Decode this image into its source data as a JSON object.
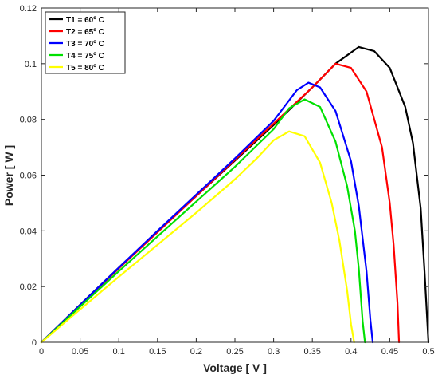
{
  "chart_data": {
    "type": "line",
    "title": "",
    "xlabel": "Voltage [ V ]",
    "ylabel": "Power [ W ]",
    "xlim": [
      0,
      0.5
    ],
    "ylim": [
      0,
      0.12
    ],
    "xticks": [
      "0",
      "0.05",
      "0.1",
      "0.15",
      "0.2",
      "0.25",
      "0.3",
      "0.35",
      "0.4",
      "0.45",
      "0.5"
    ],
    "yticks": [
      "0",
      "0.02",
      "0.04",
      "0.06",
      "0.08",
      "0.1",
      "0.12"
    ],
    "grid": false,
    "legend_position": "top-left",
    "series": [
      {
        "name": "T1 = 60º C",
        "color": "#000000",
        "x": [
          0,
          0.05,
          0.1,
          0.15,
          0.2,
          0.25,
          0.3,
          0.35,
          0.38,
          0.41,
          0.43,
          0.45,
          0.47,
          0.48,
          0.49,
          0.495,
          0.5
        ],
        "y": [
          0,
          0.0135,
          0.0268,
          0.0398,
          0.0525,
          0.0652,
          0.078,
          0.0915,
          0.1,
          0.106,
          0.1045,
          0.0985,
          0.0845,
          0.0715,
          0.048,
          0.025,
          0
        ]
      },
      {
        "name": "T2 = 65º C",
        "color": "#ff0000",
        "x": [
          0,
          0.05,
          0.1,
          0.15,
          0.2,
          0.25,
          0.3,
          0.35,
          0.38,
          0.4,
          0.42,
          0.44,
          0.45,
          0.455,
          0.46,
          0.462
        ],
        "y": [
          0,
          0.0133,
          0.0265,
          0.0395,
          0.0525,
          0.0655,
          0.0785,
          0.0915,
          0.1,
          0.0985,
          0.09,
          0.07,
          0.05,
          0.035,
          0.014,
          0
        ]
      },
      {
        "name": "T3 = 70º C",
        "color": "#0000ff",
        "x": [
          0,
          0.05,
          0.1,
          0.15,
          0.2,
          0.25,
          0.3,
          0.33,
          0.345,
          0.36,
          0.38,
          0.4,
          0.41,
          0.42,
          0.425,
          0.428
        ],
        "y": [
          0,
          0.0134,
          0.0268,
          0.04,
          0.053,
          0.066,
          0.0795,
          0.0905,
          0.0932,
          0.0915,
          0.083,
          0.065,
          0.049,
          0.0255,
          0.008,
          0
        ]
      },
      {
        "name": "T4 = 75º C",
        "color": "#00e000",
        "x": [
          0,
          0.05,
          0.1,
          0.15,
          0.2,
          0.25,
          0.3,
          0.32,
          0.34,
          0.36,
          0.38,
          0.395,
          0.405,
          0.41,
          0.415,
          0.418
        ],
        "y": [
          0,
          0.0128,
          0.0255,
          0.038,
          0.0505,
          0.063,
          0.0765,
          0.084,
          0.0872,
          0.0845,
          0.072,
          0.056,
          0.04,
          0.0265,
          0.0075,
          0
        ]
      },
      {
        "name": "T5 = 80º C",
        "color": "#ffff00",
        "x": [
          0,
          0.05,
          0.1,
          0.15,
          0.2,
          0.25,
          0.28,
          0.3,
          0.32,
          0.34,
          0.36,
          0.375,
          0.385,
          0.395,
          0.4,
          0.404
        ],
        "y": [
          0,
          0.0118,
          0.0235,
          0.035,
          0.0465,
          0.0585,
          0.0665,
          0.0725,
          0.0757,
          0.074,
          0.0645,
          0.05,
          0.0365,
          0.0185,
          0.0065,
          0
        ]
      }
    ]
  }
}
